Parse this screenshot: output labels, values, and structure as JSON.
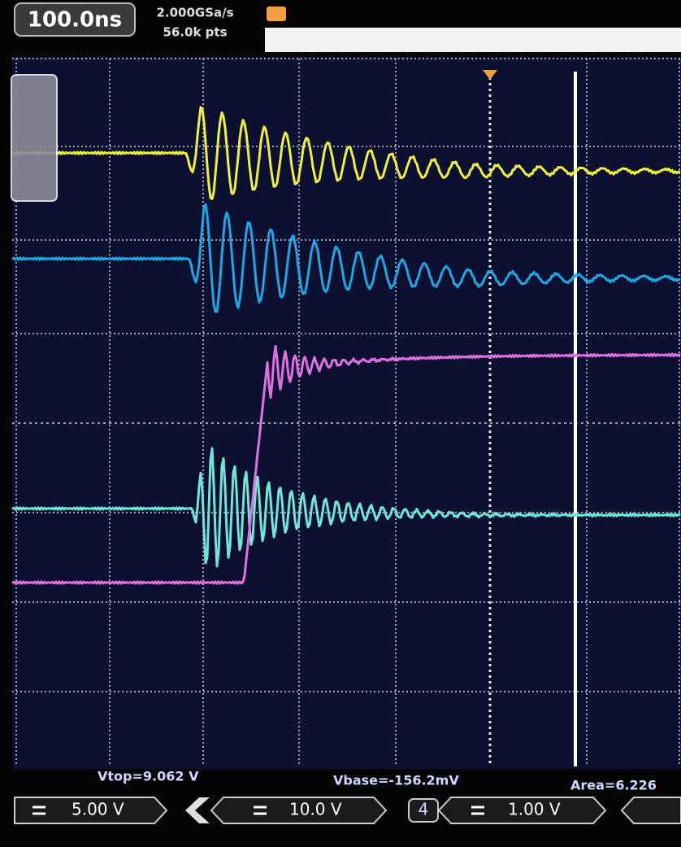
{
  "header": {
    "timebase": "100.0ns",
    "sample_rate": "2.000GSa/s",
    "memory_depth": "56.0k pts"
  },
  "measurements": {
    "vtop": "Vtop=9.062 V",
    "vbase": "Vbase=-156.2mV",
    "area": "Area=6.226"
  },
  "channels": [
    {
      "scale": "5.00 V"
    },
    {
      "scale": "10.0 V"
    },
    {
      "number": "4",
      "scale": "1.00 V"
    }
  ]
}
